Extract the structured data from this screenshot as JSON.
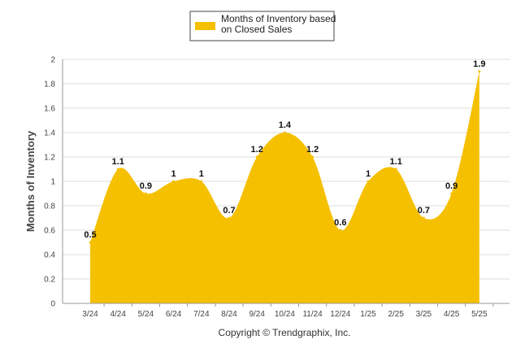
{
  "chart_data": {
    "type": "area",
    "categories": [
      "3/24",
      "4/24",
      "5/24",
      "6/24",
      "7/24",
      "8/24",
      "9/24",
      "10/24",
      "11/24",
      "12/24",
      "1/25",
      "2/25",
      "3/25",
      "4/25",
      "5/25"
    ],
    "series": [
      {
        "name": "Months of Inventory based on Closed Sales",
        "legend_lines": [
          "Months of Inventory based",
          "on Closed Sales"
        ],
        "values": [
          0.5,
          1.1,
          0.9,
          1,
          1,
          0.7,
          1.2,
          1.4,
          1.2,
          0.6,
          1,
          1.1,
          0.7,
          0.9,
          1.9
        ],
        "labels": [
          "0.5",
          "1.1",
          "0.9",
          "1",
          "1",
          "0.7",
          "1.2",
          "1.4",
          "1.2",
          "0.6",
          "1",
          "1.1",
          "0.7",
          "0.9",
          "1.9"
        ],
        "color": "#F5C000"
      }
    ],
    "ylabel": "Months of Inventory",
    "xlabel": "",
    "ylim": [
      0,
      2
    ],
    "yticks": [
      0,
      0.2,
      0.4,
      0.6,
      0.8,
      1,
      1.2,
      1.4,
      1.6,
      1.8,
      2
    ],
    "ytick_labels": [
      "0",
      "0.2",
      "0.4",
      "0.6",
      "0.8",
      "1",
      "1.2",
      "1.4",
      "1.6",
      "1.8",
      "2"
    ],
    "grid": true,
    "legend_position": "top-center"
  },
  "footer": {
    "copyright": "Copyright © Trendgraphix, Inc."
  }
}
